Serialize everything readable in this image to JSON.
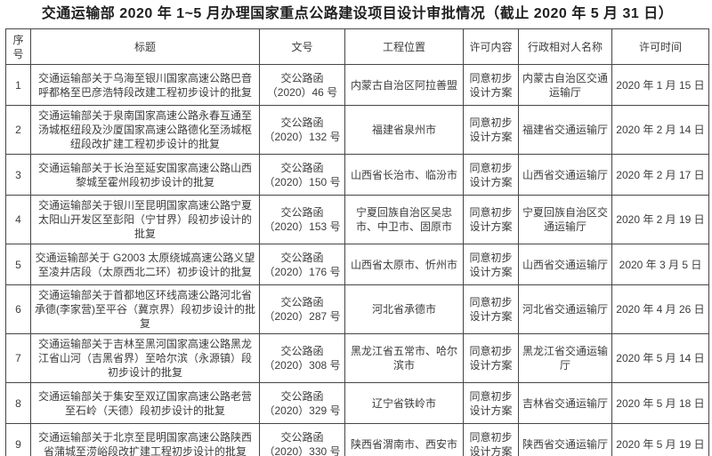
{
  "page_title": "交通运输部 2020 年 1~5 月办理国家重点公路建设项目设计审批情况（截止 2020 年 5 月 31 日）",
  "colors": {
    "border": "#464646",
    "text": "#3c3c3c",
    "title_text": "#1f1f1f",
    "background": "#ffffff"
  },
  "table": {
    "headers": [
      "序号",
      "标题",
      "文号",
      "工程位置",
      "许可内容",
      "行政相对人名称",
      "许可时间"
    ],
    "rows": [
      [
        "1",
        "交通运输部关于乌海至银川国家高速公路巴音呼都格至巴彦浩特段改建工程初步设计的批复",
        "交公路函\n（2020）46 号",
        "内蒙古自治区阿拉善盟",
        "同意初步设计方案",
        "内蒙古自治区交通运输厅",
        "2020 年 1 月 15 日"
      ],
      [
        "2",
        "交通运输部关于泉南国家高速公路永春互通至汤城枢纽段及沙厦国家高速公路德化至汤城枢纽段改扩建工程初步设计的批复",
        "交公路函\n（2020）132 号",
        "福建省泉州市",
        "同意初步设计方案",
        "福建省交通运输厅",
        "2020 年 2 月 14 日"
      ],
      [
        "3",
        "交通运输部关于长治至延安国家高速公路山西黎城至霍州段初步设计的批复",
        "交公路函\n（2020）150 号",
        "山西省长治市、临汾市",
        "同意初步设计方案",
        "山西省交通运输厅",
        "2020 年 2 月 17 日"
      ],
      [
        "4",
        "交通运输部关于银川至昆明国家高速公路宁夏太阳山开发区至彭阳（宁甘界）段初步设计的批复",
        "交公路函\n（2020）153 号",
        "宁夏回族自治区吴忠市、中卫市、固原市",
        "同意初步设计方案",
        "宁夏回族自治区交通运输厅",
        "2020 年 2 月 19 日"
      ],
      [
        "5",
        "交通运输部关于 G2003 太原绕城高速公路义望至凌井店段（太原西北二环）初步设计的批复",
        "交公路函\n（2020）176 号",
        "山西省太原市、忻州市",
        "同意初步设计方案",
        "山西省交通运输厅",
        "2020 年 3 月 5 日"
      ],
      [
        "6",
        "交通运输部关于首都地区环线高速公路河北省承德(李家营)至平谷（冀京界）段初步设计的批复",
        "交公路函\n（2020）287 号",
        "河北省承德市",
        "同意初步设计方案",
        "河北省交通运输厅",
        "2020 年 4 月 26 日"
      ],
      [
        "7",
        "交通运输部关于吉林至黑河国家高速公路黑龙江省山河（吉黑省界）至哈尔滨（永源镇）段初步设计的批复",
        "交公路函\n（2020）308 号",
        "黑龙江省五常市、哈尔滨市",
        "同意初步设计方案",
        "黑龙江省交通运输厅",
        "2020 年 5 月 14 日"
      ],
      [
        "8",
        "交通运输部关于集安至双辽国家高速公路老营至石岭（天德）段初步设计的批复",
        "交公路函\n（2020）329 号",
        "辽宁省铁岭市",
        "同意初步设计方案",
        "吉林省交通运输厅",
        "2020 年 5 月 18 日"
      ],
      [
        "9",
        "交通运输部关于北京至昆明国家高速公路陕西省蒲城至涝峪段改扩建工程初步设计的批复",
        "交公路函\n（2020）330 号",
        "陕西省渭南市、西安市",
        "同意初步设计方案",
        "陕西省交通运输厅",
        "2020 年 5 月 19 日"
      ]
    ],
    "column_semantics": [
      "no",
      "title",
      "doc-number",
      "location",
      "permit-content",
      "counterpart-name",
      "permit-date"
    ]
  }
}
